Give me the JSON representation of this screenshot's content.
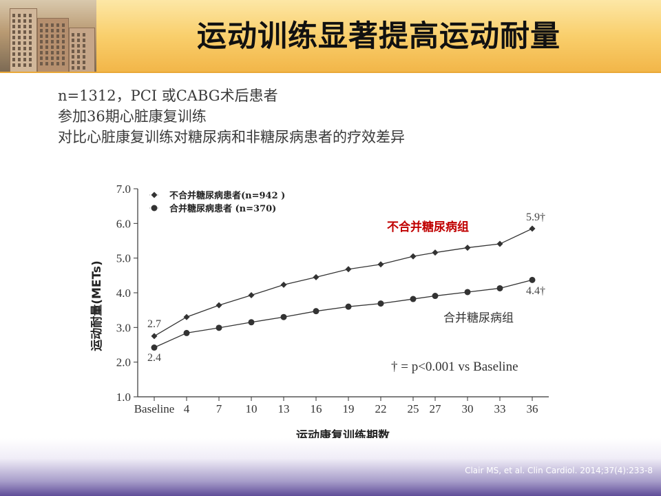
{
  "header": {
    "title": "运动训练显著提高运动耐量"
  },
  "intro": {
    "lines": [
      "n=1312，PCI 或CABG术后患者",
      "参加36期心脏康复训练",
      "对比心脏康复训练对糖尿病和非糖尿病患者的疗效差异"
    ]
  },
  "chart_data": {
    "type": "line",
    "xlabel": "运动康复训练期数",
    "ylabel": "运动耐量(METs)",
    "categories": [
      "Baseline",
      "4",
      "7",
      "10",
      "13",
      "16",
      "19",
      "22",
      "25",
      "27",
      "30",
      "33",
      "36"
    ],
    "x": [
      0,
      4,
      7,
      10,
      13,
      16,
      19,
      22,
      25,
      27,
      30,
      33,
      36
    ],
    "ylim": [
      1.0,
      7.0
    ],
    "yticks": [
      "1.0",
      "2.0",
      "3.0",
      "4.0",
      "5.0",
      "6.0",
      "7.0"
    ],
    "series": [
      {
        "name": "不合并糖尿病患者(n=942 )",
        "marker": "diamond",
        "values": [
          2.75,
          3.3,
          3.64,
          3.93,
          4.23,
          4.45,
          4.68,
          4.82,
          5.05,
          5.16,
          5.3,
          5.41,
          5.85
        ]
      },
      {
        "name": "合并糖尿病患者 (n=370)",
        "marker": "circle",
        "values": [
          2.42,
          2.84,
          2.99,
          3.15,
          3.3,
          3.47,
          3.6,
          3.69,
          3.82,
          3.91,
          4.02,
          4.13,
          4.37
        ]
      }
    ],
    "annotations": {
      "start_top": "2.7",
      "start_bottom": "2.4",
      "end_top": "5.9†",
      "end_bottom": "4.4†",
      "group_top": "不合并糖尿病组",
      "group_bottom": "合并糖尿病组",
      "significance": "† = p<0.001 vs Baseline"
    },
    "colors": {
      "line": "#333333",
      "group_top": "#c00000",
      "group_bottom": "#333333"
    },
    "legend": "top-left",
    "grid": false
  },
  "citation": "Clair MS, et al. Clin Cardiol. 2014;37(4):233-8"
}
